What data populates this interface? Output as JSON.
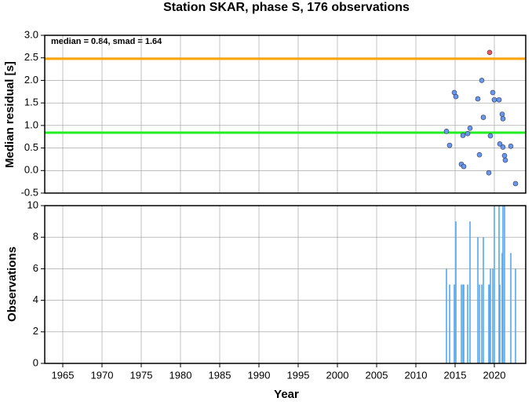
{
  "chart_data": [
    {
      "type": "scatter",
      "title": "Station SKAR, phase S, 176 observations",
      "ylabel": "Median residual [s]",
      "annotation": "median = 0.84, smad = 1.64",
      "x": [
        2013.9,
        2014.3,
        2014.9,
        2015.1,
        2015.8,
        2016.0,
        2016.1,
        2016.6,
        2016.9,
        2017.9,
        2018.1,
        2018.4,
        2018.6,
        2019.3,
        2019.4,
        2019.5,
        2019.8,
        2020.0,
        2020.6,
        2020.7,
        2021.0,
        2021.1,
        2021.1,
        2021.3,
        2021.4,
        2022.1,
        2022.7
      ],
      "values": [
        0.87,
        0.56,
        1.73,
        1.64,
        0.14,
        0.78,
        0.09,
        0.82,
        0.94,
        1.59,
        0.35,
        2.0,
        1.18,
        -0.05,
        2.62,
        0.77,
        1.73,
        1.57,
        1.57,
        0.59,
        1.25,
        1.15,
        0.52,
        0.33,
        0.23,
        0.54,
        -0.29
      ],
      "point_colors": [
        "#6699ee",
        "#6699ee",
        "#6699ee",
        "#6699ee",
        "#6699ee",
        "#6699ee",
        "#6699ee",
        "#6699ee",
        "#6699ee",
        "#6699ee",
        "#6699ee",
        "#6699ee",
        "#6699ee",
        "#6699ee",
        "#ee5555",
        "#6699ee",
        "#6699ee",
        "#6699ee",
        "#6699ee",
        "#6699ee",
        "#6699ee",
        "#6699ee",
        "#6699ee",
        "#6699ee",
        "#6699ee",
        "#6699ee",
        "#6699ee"
      ],
      "hlines": [
        {
          "value": 2.48,
          "color": "#ffa500"
        },
        {
          "value": 0.84,
          "color": "#22ee22"
        }
      ],
      "xlim": [
        1962.7,
        2024
      ],
      "ylim": [
        -0.5,
        3.0
      ],
      "yticks": [
        -0.5,
        {
          "value": 0,
          "label": "0.0"
        },
        0.5,
        {
          "value": 1,
          "label": "1.0"
        },
        1.5,
        {
          "value": 2,
          "label": "2.0"
        },
        2.5,
        {
          "value": 3,
          "label": "3.0"
        }
      ],
      "grid": true
    },
    {
      "type": "bar",
      "xlabel": "Year",
      "ylabel": "Observations",
      "color": "#55aaee",
      "x": [
        2013.9,
        2014.3,
        2014.9,
        2015.1,
        2015.8,
        2016.0,
        2016.1,
        2016.6,
        2016.9,
        2017.9,
        2018.1,
        2018.4,
        2018.6,
        2019.3,
        2019.4,
        2019.5,
        2019.8,
        2020.0,
        2020.6,
        2020.7,
        2021.0,
        2021.1,
        2021.3,
        2022.1,
        2022.7
      ],
      "values": [
        6,
        5,
        5,
        9,
        5,
        5,
        5,
        5,
        9,
        8,
        5,
        5,
        8,
        5,
        5,
        6,
        6,
        10,
        10,
        5,
        7,
        10,
        10,
        7,
        6
      ],
      "xlim": [
        1962.7,
        2024
      ],
      "ylim": [
        0,
        10
      ],
      "xticks": [
        1965,
        1970,
        1975,
        1980,
        1985,
        1990,
        1995,
        2000,
        2005,
        2010,
        2015,
        2020
      ],
      "yticks": [
        0,
        2,
        4,
        6,
        8,
        10
      ],
      "grid": true
    }
  ]
}
